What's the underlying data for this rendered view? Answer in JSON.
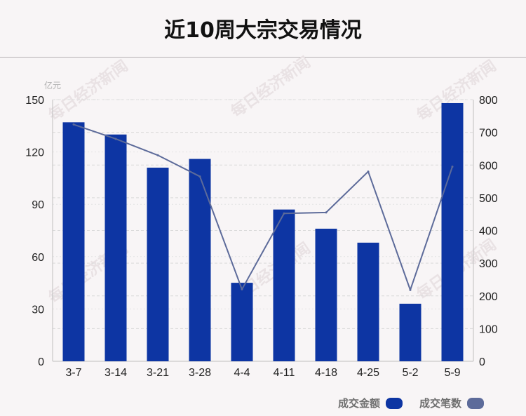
{
  "title": "近10周大宗交易情况",
  "watermark": "每日经济新闻",
  "legend": {
    "amount_label": "成交金额",
    "count_label": "成交笔数"
  },
  "colors": {
    "bar": "#0d35a3",
    "line": "#5d6b9a",
    "grid": "#d9d9d9",
    "background": "#f8f5f6"
  },
  "chart_data": {
    "type": "bar",
    "categories": [
      "3-7",
      "3-14",
      "3-21",
      "3-28",
      "4-4",
      "4-11",
      "4-18",
      "4-25",
      "5-2",
      "5-9"
    ],
    "series": [
      {
        "name": "成交金额",
        "type": "bar",
        "axis": "left",
        "values": [
          137,
          130,
          111,
          116,
          45,
          87,
          76,
          68,
          33,
          148
        ]
      },
      {
        "name": "成交笔数",
        "type": "line",
        "axis": "right",
        "values": [
          724,
          680,
          630,
          565,
          220,
          452,
          455,
          580,
          218,
          595
        ]
      }
    ],
    "y_left": {
      "unit": "亿元",
      "ylim": [
        0,
        150
      ],
      "ticks": [
        "0",
        "30",
        "60",
        "90",
        "120",
        "150"
      ]
    },
    "y_right": {
      "ylim": [
        0,
        800
      ],
      "ticks": [
        "0",
        "100",
        "200",
        "300",
        "400",
        "500",
        "600",
        "700",
        "800"
      ]
    },
    "grid": true,
    "legend_position": "bottom-right"
  }
}
